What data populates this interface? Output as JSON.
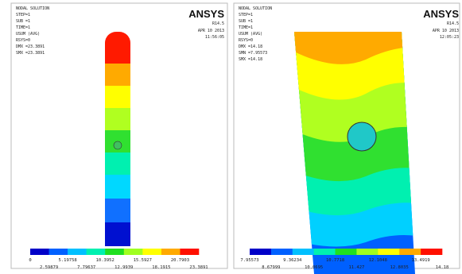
{
  "panels": [
    {
      "header": [
        "NODAL SOLUTION",
        "STEP=1",
        "SUB =1",
        "TIME=1",
        "USUM     (AVG)",
        "RSYS=0",
        "DMX =23.3891",
        "SMX =23.3891"
      ],
      "brand": "ANSYS",
      "version": "R14.5",
      "date": "APR 10 2013",
      "time": "11:56:05",
      "legend": {
        "top": [
          0,
          5.19758,
          10.3952,
          15.5927,
          20.7903
        ],
        "bottom": [
          2.59879,
          7.79637,
          12.9939,
          18.1915,
          23.3891
        ]
      }
    },
    {
      "header": [
        "NODAL SOLUTION",
        "STEP=1",
        "SUB =1",
        "TIME=1",
        "USUM     (AVG)",
        "RSYS=0",
        "DMX =14.18",
        "SMN =7.95573",
        "SMX =14.18"
      ],
      "brand": "ANSYS",
      "version": "R14.5",
      "date": "APR 10 2013",
      "time": "12:05:23",
      "legend": {
        "top": [
          7.95573,
          9.36234,
          10.7718,
          12.1048,
          13.4919
        ],
        "bottom": [
          8.67999,
          10.0695,
          11.427,
          12.8035,
          14.18
        ]
      }
    }
  ]
}
